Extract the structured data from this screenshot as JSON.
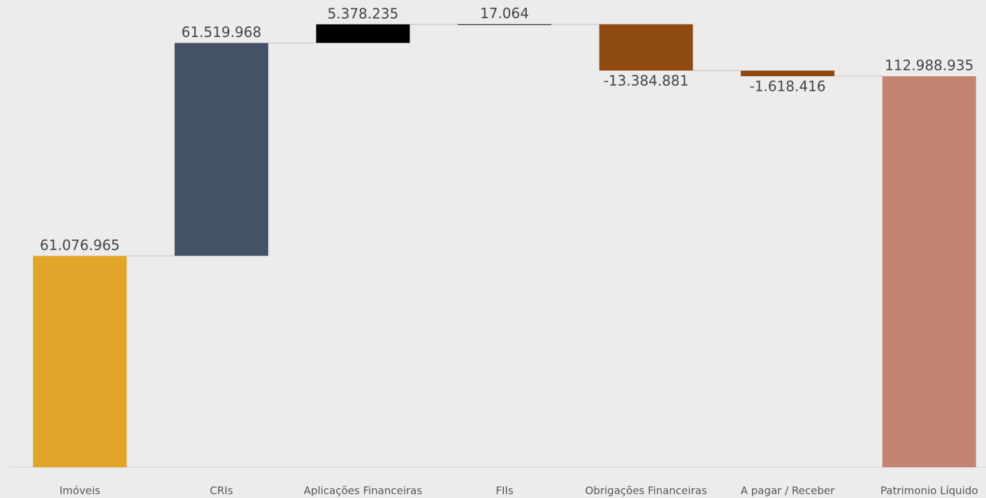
{
  "chart_data": {
    "type": "waterfall",
    "categories": [
      "Imóveis",
      "CRIs",
      "Aplicações Financeiras",
      "FIIs",
      "Obrigações Financeiras",
      "A pagar / Receber",
      "Patrimonio Líquido"
    ],
    "values": [
      61076965,
      61519968,
      5378235,
      17064,
      -13384881,
      -1618416,
      112988935
    ],
    "value_labels": [
      "61.076.965",
      "61.519.968",
      "5.378.235",
      "17.064",
      "-13.384.881",
      "-1.618.416",
      "112.988.935"
    ],
    "colors": [
      "#e2a52a",
      "#435266",
      "#000000",
      "#000000",
      "#8f4a12",
      "#8f4a12",
      "#c58472"
    ],
    "total_last": true,
    "ylim": [
      0,
      135000000
    ]
  }
}
